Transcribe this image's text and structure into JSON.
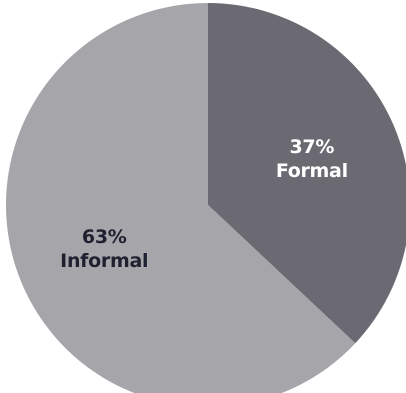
{
  "chart_data": {
    "type": "pie",
    "title": "",
    "start_angle_deg": 0,
    "direction": "clockwise",
    "slices": [
      {
        "label": "Formal",
        "value": 37,
        "display": "37%",
        "color": "#6b6a72",
        "label_color": "#ffffff"
      },
      {
        "label": "Informal",
        "value": 63,
        "display": "63%",
        "color": "#a6a6aa",
        "label_color": "#1f2130"
      }
    ]
  }
}
